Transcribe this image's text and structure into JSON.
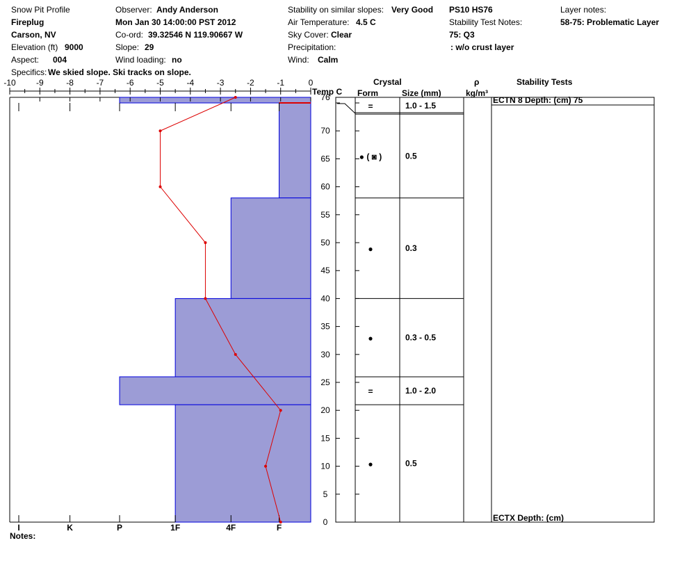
{
  "header": {
    "title": "Snow Pit Profile",
    "location_name": "Fireplug",
    "location_area": "Carson, NV",
    "elevation_label": "Elevation (ft)",
    "elevation_value": "9000",
    "aspect_label": "Aspect:",
    "aspect_value": "004",
    "specifics_label": "Specifics:",
    "specifics_value": "We skied slope. Ski tracks on slope.",
    "observer_label": "Observer:",
    "observer_value": "Andy Anderson",
    "datetime": "Mon Jan 30 14:00:00 PST 2012",
    "coord_label": "Co-ord:",
    "coord_value": "39.32546 N 119.90667 W",
    "slope_label": "Slope:",
    "slope_value": "29",
    "wind_loading_label": "Wind loading:",
    "wind_loading_value": "no",
    "stability_label": "Stability on similar slopes:",
    "stability_value": "Very Good",
    "air_temp_label": "Air Temperature:",
    "air_temp_value": "4.5 C",
    "sky_label": "Sky Cover:",
    "sky_value": "Clear",
    "precip_label": "Precipitation:",
    "precip_value": "",
    "wind_label": "Wind:",
    "wind_value": "Calm",
    "pit_id": "PS10 HS76",
    "stability_notes_label": "Stability Test Notes:",
    "stability_notes_value": "75: Q3",
    "crust_note": ": w/o crust layer",
    "layer_notes_label": "Layer notes:",
    "layer_notes_value": "58-75: Problematic Layer"
  },
  "columns": {
    "crystal": "Crystal",
    "form": "Form",
    "size": "Size (mm)",
    "rho": "ρ",
    "density_unit": "kg/m³",
    "stability_tests": "Stability Tests",
    "temp": "Temp C"
  },
  "notes_label": "Notes:",
  "chart_data": {
    "type": "snow-profile",
    "temperature_axis": {
      "label": "Temp C",
      "range": [
        -10,
        0
      ],
      "ticks": [
        -10,
        -9,
        -8,
        -7,
        -6,
        -5,
        -4,
        -3,
        -2,
        -1,
        0
      ]
    },
    "depth_axis": {
      "range": [
        0,
        76
      ],
      "ticks": [
        0,
        5,
        10,
        15,
        20,
        25,
        30,
        35,
        40,
        45,
        50,
        55,
        60,
        65,
        70,
        76
      ]
    },
    "hardness_axis": {
      "labels": [
        "I",
        "K",
        "P",
        "1F",
        "4F",
        "F"
      ],
      "positions": [
        -9.7,
        -8,
        -6.35,
        -4.5,
        -2.65,
        -1.05
      ]
    },
    "temperature_profile": [
      {
        "depth": 76,
        "temp": -2.5
      },
      {
        "depth": 70,
        "temp": -5.0
      },
      {
        "depth": 60,
        "temp": -5.0
      },
      {
        "depth": 50,
        "temp": -3.5
      },
      {
        "depth": 40,
        "temp": -3.5
      },
      {
        "depth": 30,
        "temp": -2.5
      },
      {
        "depth": 20,
        "temp": -1.0
      },
      {
        "depth": 10,
        "temp": -1.5
      },
      {
        "depth": 0,
        "temp": -1.0
      }
    ],
    "hardness_layers": [
      {
        "top": 76,
        "bottom": 75,
        "hardness": "P"
      },
      {
        "top": 75,
        "bottom": 58,
        "hardness": "F"
      },
      {
        "top": 58,
        "bottom": 40,
        "hardness": "4F"
      },
      {
        "top": 40,
        "bottom": 26,
        "hardness": "1F"
      },
      {
        "top": 26,
        "bottom": 21,
        "hardness": "P"
      },
      {
        "top": 21,
        "bottom": 0,
        "hardness": "1F"
      }
    ],
    "problem_layer_marker_depth": 75,
    "layers": [
      {
        "top": 76,
        "bottom": 73,
        "form": "=",
        "size": "1.0 - 1.5"
      },
      {
        "top": 73,
        "bottom": 58,
        "form": "● ( ◙ )",
        "size": "0.5"
      },
      {
        "top": 58,
        "bottom": 40,
        "form": "●",
        "size": "0.3"
      },
      {
        "top": 40,
        "bottom": 26,
        "form": "●",
        "size": "0.3 - 0.5"
      },
      {
        "top": 26,
        "bottom": 21,
        "form": "=",
        "size": "1.0 - 2.0"
      },
      {
        "top": 21,
        "bottom": 0,
        "form": "●",
        "size": "0.5"
      }
    ],
    "stability_tests": [
      {
        "depth": 75,
        "label": "ECTN 8   Depth: (cm) 75"
      },
      {
        "depth": 0,
        "label": "ECTX   Depth: (cm)"
      }
    ]
  },
  "colors": {
    "hardness_fill": "#9c9cd6",
    "hardness_stroke": "#0000dd",
    "temp_line": "#dd0000"
  }
}
